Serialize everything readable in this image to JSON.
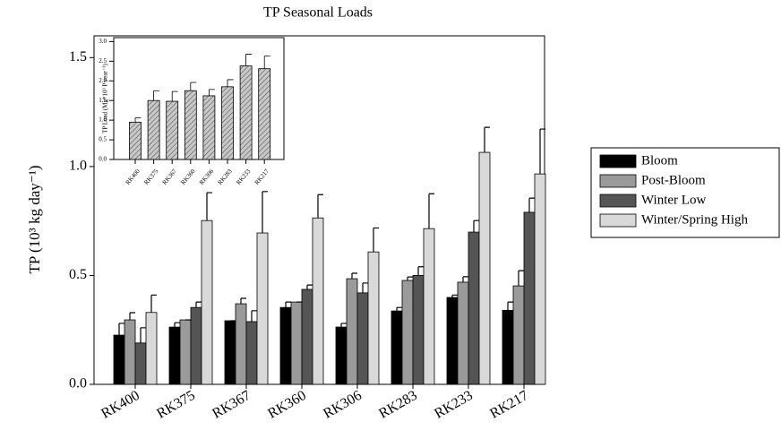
{
  "chart_data": [
    {
      "type": "bar",
      "title": "TP Seasonal Loads",
      "y_label": "TP (10³ kg day⁻¹)",
      "categories": [
        "RK400",
        "RK375",
        "RK367",
        "RK360",
        "RK306",
        "RK283",
        "RK233",
        "RK217"
      ],
      "series": [
        {
          "name": "Bloom",
          "color": "#000000",
          "values": [
            0.226,
            0.263,
            0.292,
            0.353,
            0.263,
            0.337,
            0.399,
            0.34
          ],
          "errors": [
            0.054,
            0.02,
            0,
            0.025,
            0.017,
            0.016,
            0.011,
            0.038
          ]
        },
        {
          "name": "Post-Bloom",
          "color": "#9a9a9a",
          "values": [
            0.296,
            0.296,
            0.37,
            0.378,
            0.485,
            0.477,
            0.469,
            0.452
          ],
          "errors": [
            0.033,
            0,
            0.025,
            0,
            0.025,
            0.016,
            0.025,
            0.07
          ]
        },
        {
          "name": "Winter Low",
          "color": "#555555",
          "values": [
            0.19,
            0.353,
            0.288,
            0.436,
            0.42,
            0.5,
            0.699,
            0.79
          ],
          "errors": [
            0.07,
            0.025,
            0.05,
            0.02,
            0.045,
            0.04,
            0.053,
            0.065
          ]
        },
        {
          "name": "Winter/Spring High",
          "color": "#d9d9d9",
          "values": [
            0.33,
            0.752,
            0.695,
            0.764,
            0.608,
            0.715,
            1.065,
            0.966
          ],
          "errors": [
            0.08,
            0.128,
            0.19,
            0.107,
            0.11,
            0.16,
            0.115,
            0.206
          ]
        }
      ],
      "ylim": [
        0,
        1.6
      ],
      "yticks": [
        {
          "value": 0,
          "label": "0.0"
        },
        0.5,
        {
          "value": 1,
          "label": "1.0"
        },
        1.5
      ],
      "legend": "right"
    },
    {
      "type": "bar",
      "y_label": "TP Load (Mg*10³ P year⁻¹)",
      "categories": [
        "RK400",
        "RK375",
        "RK367",
        "RK360",
        "RK306",
        "RK283",
        "RK233",
        "RK217"
      ],
      "series": [
        {
          "color": "#b0b0b0",
          "values": [
            0.95,
            1.5,
            1.48,
            1.75,
            1.62,
            1.85,
            2.38,
            2.31
          ],
          "errors": [
            0.11,
            0.25,
            0.25,
            0.21,
            0.16,
            0.18,
            0.3,
            0.32
          ]
        }
      ],
      "ylim": [
        0,
        3.1
      ],
      "yticks": [
        {
          "value": 0,
          "label": "0.0"
        },
        0.5,
        {
          "value": 1,
          "label": "1.0"
        },
        1.5,
        {
          "value": 2,
          "label": "2.0"
        },
        2.5,
        {
          "value": 3,
          "label": "3.0"
        }
      ]
    }
  ]
}
